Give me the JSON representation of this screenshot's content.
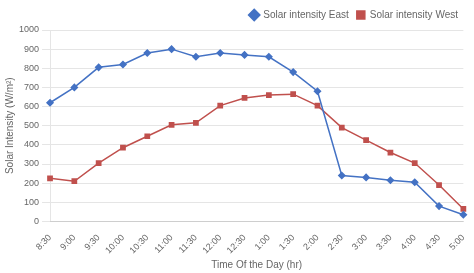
{
  "chart_data": {
    "type": "line",
    "categories": [
      "8:30",
      "9:00",
      "9:30",
      "10:00",
      "10:30",
      "11:00",
      "11:30",
      "12:00",
      "12:30",
      "1:00",
      "1:30",
      "2:00",
      "2:30",
      "3:00",
      "3:30",
      "4:00",
      "4:30",
      "5:00"
    ],
    "series": [
      {
        "name": "Solar intensity East",
        "color": "#4472C4",
        "marker": "diamond",
        "values": [
          620,
          700,
          805,
          820,
          880,
          900,
          860,
          880,
          870,
          860,
          780,
          680,
          240,
          230,
          215,
          205,
          80,
          35
        ]
      },
      {
        "name": "Solar intensity West",
        "color": "#C0504D",
        "marker": "square",
        "values": [
          225,
          210,
          305,
          385,
          445,
          505,
          515,
          605,
          645,
          660,
          665,
          605,
          490,
          425,
          360,
          305,
          190,
          65
        ]
      }
    ],
    "xlabel": "Time Of the Day (hr)",
    "ylabel": "Solar Intensity (W/m²)",
    "ylim": [
      0,
      1000
    ],
    "yticks": [
      0,
      100,
      200,
      300,
      400,
      500,
      600,
      700,
      800,
      900,
      1000
    ],
    "grid": "y",
    "legend": "upper right"
  }
}
